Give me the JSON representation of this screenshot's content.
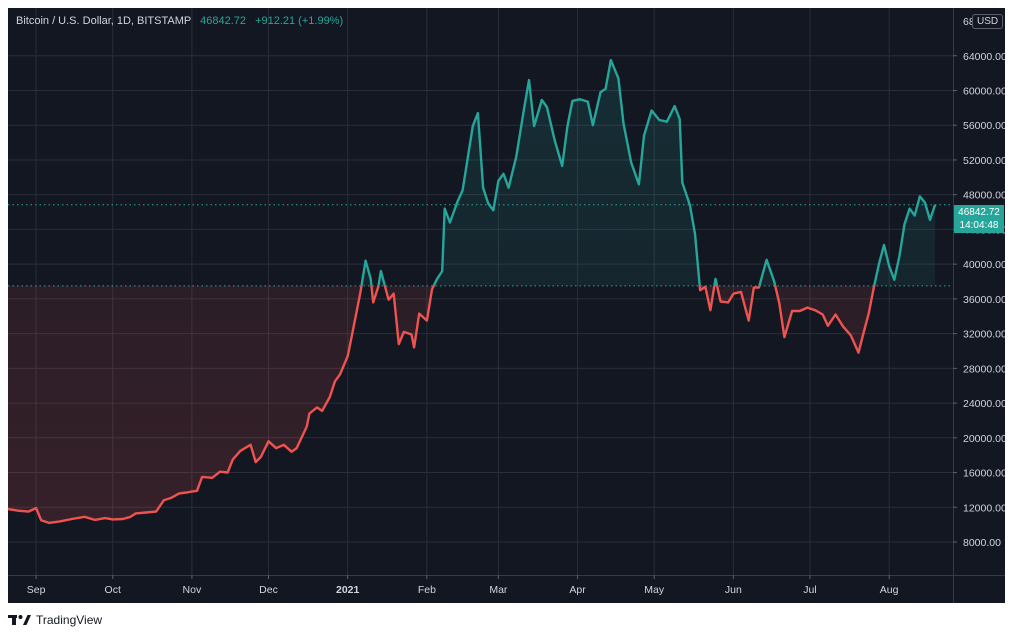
{
  "chart_data": {
    "type": "line",
    "legend": {
      "symbol": "Bitcoin / U.S. Dollar, 1D, BITSTAMP",
      "last": "46842.72",
      "change": "+912.21 (+1.99%)"
    },
    "currency": "USD",
    "last_price_label": "46842.72",
    "countdown_label": "14:04:48",
    "baseline_value": 37500,
    "last_value": 46842.72,
    "ylim": [
      4200,
      69500
    ],
    "y_ticks": [
      {
        "value": 8000,
        "label": "8000.00"
      },
      {
        "value": 12000,
        "label": "12000.00"
      },
      {
        "value": 16000,
        "label": "16000.00"
      },
      {
        "value": 20000,
        "label": "20000.00"
      },
      {
        "value": 24000,
        "label": "24000.00"
      },
      {
        "value": 28000,
        "label": "28000.00"
      },
      {
        "value": 32000,
        "label": "32000.00"
      },
      {
        "value": 36000,
        "label": "36000.00"
      },
      {
        "value": 40000,
        "label": "40000.00"
      },
      {
        "value": 44000,
        "label": "44000.00"
      },
      {
        "value": 48000,
        "label": "48000.00"
      },
      {
        "value": 52000,
        "label": "52000.00"
      },
      {
        "value": 56000,
        "label": "56000.00"
      },
      {
        "value": 60000,
        "label": "60000.00"
      },
      {
        "value": 64000,
        "label": "64000.00"
      }
    ],
    "x_ticks": [
      {
        "date": "2020-09-01",
        "label": "Sep"
      },
      {
        "date": "2020-10-01",
        "label": "Oct"
      },
      {
        "date": "2020-11-01",
        "label": "Nov"
      },
      {
        "date": "2020-12-01",
        "label": "Dec"
      },
      {
        "date": "2021-01-01",
        "label": "2021",
        "bold": true
      },
      {
        "date": "2021-02-01",
        "label": "Feb"
      },
      {
        "date": "2021-03-01",
        "label": "Mar"
      },
      {
        "date": "2021-04-01",
        "label": "Apr"
      },
      {
        "date": "2021-05-01",
        "label": "May"
      },
      {
        "date": "2021-06-01",
        "label": "Jun"
      },
      {
        "date": "2021-07-01",
        "label": "Jul"
      },
      {
        "date": "2021-08-01",
        "label": "Aug"
      }
    ],
    "x_range": [
      "2020-08-21",
      "2021-08-26"
    ],
    "series": [
      {
        "points": [
          [
            "2020-08-21",
            11800
          ],
          [
            "2020-08-25",
            11600
          ],
          [
            "2020-08-29",
            11500
          ],
          [
            "2020-09-01",
            11900
          ],
          [
            "2020-09-03",
            10500
          ],
          [
            "2020-09-06",
            10200
          ],
          [
            "2020-09-10",
            10350
          ],
          [
            "2020-09-15",
            10650
          ],
          [
            "2020-09-20",
            10900
          ],
          [
            "2020-09-24",
            10550
          ],
          [
            "2020-09-28",
            10750
          ],
          [
            "2020-10-01",
            10600
          ],
          [
            "2020-10-05",
            10650
          ],
          [
            "2020-10-08",
            10900
          ],
          [
            "2020-10-10",
            11300
          ],
          [
            "2020-10-14",
            11400
          ],
          [
            "2020-10-18",
            11500
          ],
          [
            "2020-10-21",
            12800
          ],
          [
            "2020-10-24",
            13100
          ],
          [
            "2020-10-27",
            13600
          ],
          [
            "2020-10-30",
            13700
          ],
          [
            "2020-11-01",
            13800
          ],
          [
            "2020-11-03",
            13900
          ],
          [
            "2020-11-05",
            15500
          ],
          [
            "2020-11-09",
            15400
          ],
          [
            "2020-11-12",
            16100
          ],
          [
            "2020-11-15",
            16000
          ],
          [
            "2020-11-17",
            17500
          ],
          [
            "2020-11-20",
            18500
          ],
          [
            "2020-11-24",
            19200
          ],
          [
            "2020-11-26",
            17200
          ],
          [
            "2020-11-28",
            17800
          ],
          [
            "2020-12-01",
            19600
          ],
          [
            "2020-12-04",
            18800
          ],
          [
            "2020-12-07",
            19200
          ],
          [
            "2020-12-10",
            18400
          ],
          [
            "2020-12-12",
            18800
          ],
          [
            "2020-12-16",
            21300
          ],
          [
            "2020-12-17",
            22800
          ],
          [
            "2020-12-20",
            23500
          ],
          [
            "2020-12-22",
            23100
          ],
          [
            "2020-12-25",
            24700
          ],
          [
            "2020-12-27",
            26500
          ],
          [
            "2020-12-29",
            27300
          ],
          [
            "2021-01-01",
            29400
          ],
          [
            "2021-01-03",
            32300
          ],
          [
            "2021-01-06",
            36800
          ],
          [
            "2021-01-08",
            40400
          ],
          [
            "2021-01-10",
            38300
          ],
          [
            "2021-01-11",
            35600
          ],
          [
            "2021-01-13",
            37400
          ],
          [
            "2021-01-14",
            39200
          ],
          [
            "2021-01-17",
            35900
          ],
          [
            "2021-01-19",
            36600
          ],
          [
            "2021-01-21",
            30800
          ],
          [
            "2021-01-23",
            32200
          ],
          [
            "2021-01-26",
            31900
          ],
          [
            "2021-01-27",
            30400
          ],
          [
            "2021-01-29",
            34300
          ],
          [
            "2021-02-01",
            33500
          ],
          [
            "2021-02-03",
            37100
          ],
          [
            "2021-02-05",
            38300
          ],
          [
            "2021-02-07",
            39200
          ],
          [
            "2021-02-08",
            46400
          ],
          [
            "2021-02-10",
            44800
          ],
          [
            "2021-02-13",
            47200
          ],
          [
            "2021-02-15",
            48500
          ],
          [
            "2021-02-17",
            52200
          ],
          [
            "2021-02-19",
            55900
          ],
          [
            "2021-02-21",
            57400
          ],
          [
            "2021-02-23",
            48800
          ],
          [
            "2021-02-25",
            47000
          ],
          [
            "2021-02-27",
            46200
          ],
          [
            "2021-03-01",
            49600
          ],
          [
            "2021-03-03",
            50400
          ],
          [
            "2021-03-05",
            48800
          ],
          [
            "2021-03-08",
            52400
          ],
          [
            "2021-03-11",
            57800
          ],
          [
            "2021-03-13",
            61200
          ],
          [
            "2021-03-15",
            55900
          ],
          [
            "2021-03-18",
            58900
          ],
          [
            "2021-03-20",
            58100
          ],
          [
            "2021-03-23",
            54300
          ],
          [
            "2021-03-26",
            51300
          ],
          [
            "2021-03-28",
            55800
          ],
          [
            "2021-03-30",
            58800
          ],
          [
            "2021-04-02",
            59000
          ],
          [
            "2021-04-05",
            58700
          ],
          [
            "2021-04-07",
            56000
          ],
          [
            "2021-04-10",
            59800
          ],
          [
            "2021-04-12",
            60200
          ],
          [
            "2021-04-14",
            63500
          ],
          [
            "2021-04-17",
            61400
          ],
          [
            "2021-04-19",
            56200
          ],
          [
            "2021-04-22",
            51700
          ],
          [
            "2021-04-25",
            49200
          ],
          [
            "2021-04-27",
            54800
          ],
          [
            "2021-04-30",
            57700
          ],
          [
            "2021-05-03",
            56600
          ],
          [
            "2021-05-06",
            56400
          ],
          [
            "2021-05-09",
            58200
          ],
          [
            "2021-05-11",
            56700
          ],
          [
            "2021-05-12",
            49400
          ],
          [
            "2021-05-15",
            46800
          ],
          [
            "2021-05-17",
            43500
          ],
          [
            "2021-05-19",
            37000
          ],
          [
            "2021-05-21",
            37400
          ],
          [
            "2021-05-23",
            34700
          ],
          [
            "2021-05-25",
            38300
          ],
          [
            "2021-05-27",
            35700
          ],
          [
            "2021-05-30",
            35600
          ],
          [
            "2021-06-01",
            36600
          ],
          [
            "2021-06-04",
            36800
          ],
          [
            "2021-06-07",
            33500
          ],
          [
            "2021-06-09",
            37300
          ],
          [
            "2021-06-11",
            37300
          ],
          [
            "2021-06-14",
            40500
          ],
          [
            "2021-06-17",
            38000
          ],
          [
            "2021-06-19",
            35500
          ],
          [
            "2021-06-21",
            31600
          ],
          [
            "2021-06-24",
            34600
          ],
          [
            "2021-06-27",
            34600
          ],
          [
            "2021-06-30",
            35000
          ],
          [
            "2021-07-03",
            34700
          ],
          [
            "2021-07-06",
            34200
          ],
          [
            "2021-07-08",
            32900
          ],
          [
            "2021-07-11",
            34200
          ],
          [
            "2021-07-14",
            32800
          ],
          [
            "2021-07-17",
            31800
          ],
          [
            "2021-07-20",
            29800
          ],
          [
            "2021-07-22",
            32100
          ],
          [
            "2021-07-24",
            34300
          ],
          [
            "2021-07-26",
            37300
          ],
          [
            "2021-07-28",
            40000
          ],
          [
            "2021-07-30",
            42200
          ],
          [
            "2021-08-01",
            39800
          ],
          [
            "2021-08-03",
            38200
          ],
          [
            "2021-08-05",
            40900
          ],
          [
            "2021-08-07",
            44600
          ],
          [
            "2021-08-09",
            46400
          ],
          [
            "2021-08-11",
            45600
          ],
          [
            "2021-08-13",
            47800
          ],
          [
            "2021-08-15",
            47100
          ],
          [
            "2021-08-17",
            45100
          ],
          [
            "2021-08-19",
            46842.72
          ]
        ],
        "color_above": "#26a69a",
        "color_below": "#ef5350"
      }
    ],
    "grid": true
  },
  "branding": {
    "logo_icon": "tradingview-logo-icon",
    "logo_text": "TradingView"
  }
}
